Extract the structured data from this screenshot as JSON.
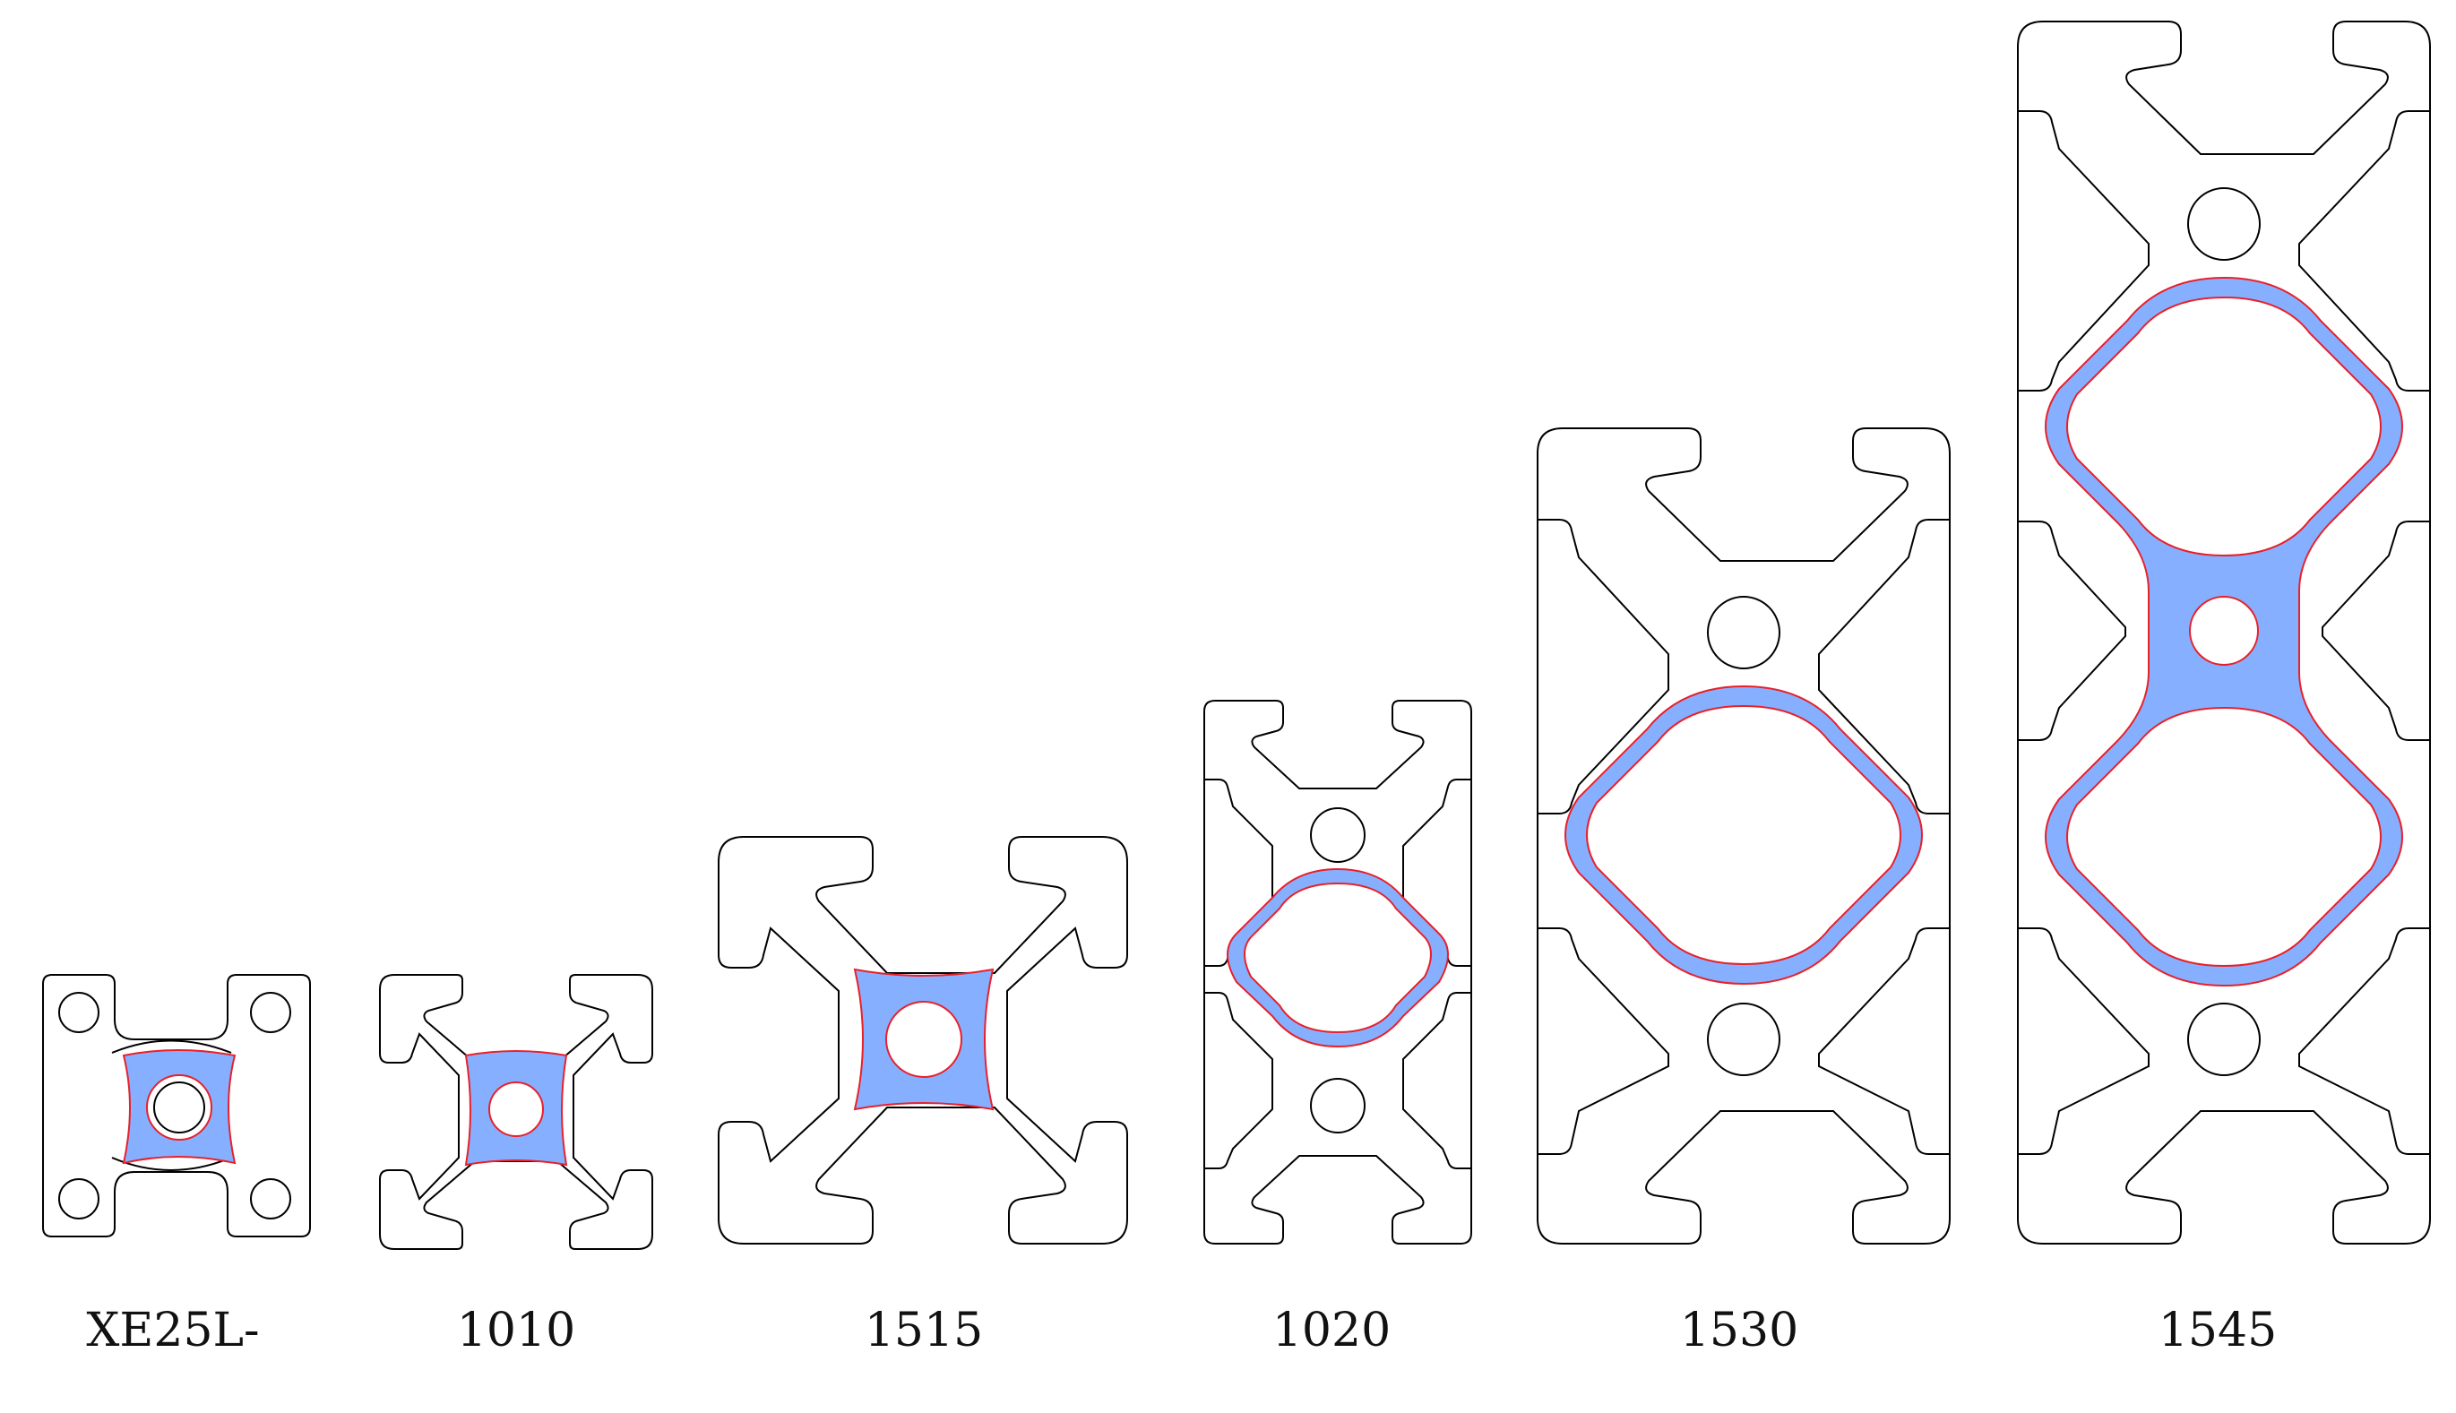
{
  "colors": {
    "background": "#ffffff",
    "outline": "#000000",
    "fill": "#86b0ff",
    "highlight_edge": "#e8202a"
  },
  "profiles": [
    {
      "label": "XE25L-",
      "style": "xe",
      "cols": 1,
      "rows": 1
    },
    {
      "label": "1010",
      "style": "cross",
      "cols": 1,
      "rows": 1
    },
    {
      "label": "1515",
      "style": "cross",
      "cols": 1,
      "rows": 1
    },
    {
      "label": "1020",
      "style": "tall",
      "cols": 1,
      "rows": 2
    },
    {
      "label": "1530",
      "style": "tall",
      "cols": 1,
      "rows": 2
    },
    {
      "label": "1545",
      "style": "tall",
      "cols": 1,
      "rows": 3
    }
  ]
}
